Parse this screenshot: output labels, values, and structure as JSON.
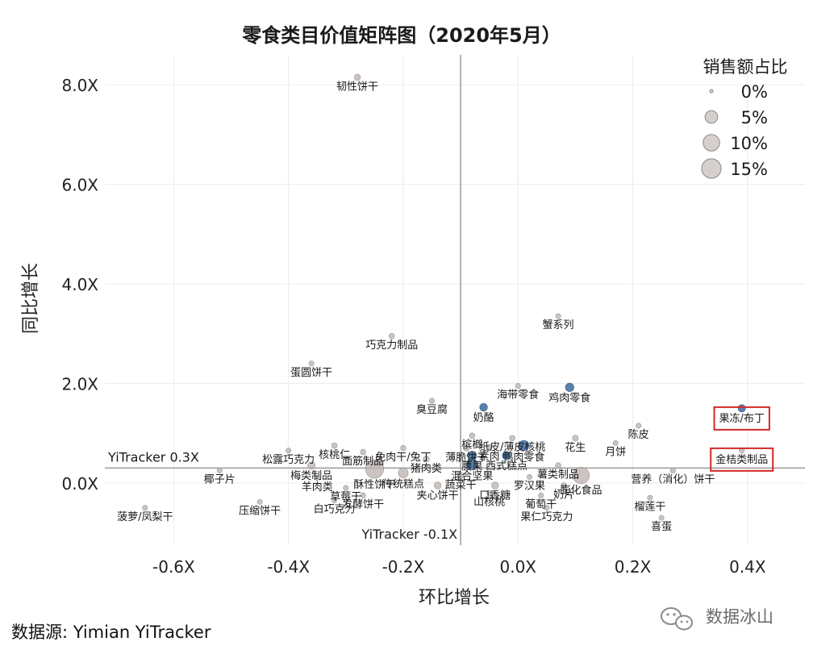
{
  "chart_data": {
    "type": "scatter",
    "title": "零食类目价值矩阵图（2020年5月）",
    "xlabel": "环比增长",
    "ylabel": "同比增长",
    "xlim": [
      -0.72,
      0.5
    ],
    "ylim": [
      -1.25,
      8.6
    ],
    "x_ticks": [
      -0.6,
      -0.4,
      -0.2,
      0.0,
      0.2,
      0.4
    ],
    "x_tick_labels": [
      "-0.6X",
      "-0.4X",
      "-0.2X",
      "0.0X",
      "0.2X",
      "0.4X"
    ],
    "y_ticks": [
      0,
      2,
      4,
      6,
      8
    ],
    "y_tick_labels": [
      "0.0X",
      "2.0X",
      "4.0X",
      "6.0X",
      "8.0X"
    ],
    "grid": true,
    "reference_lines": [
      {
        "axis": "x",
        "value": -0.1,
        "label": "YiTracker -0.1X"
      },
      {
        "axis": "y",
        "value": 0.3,
        "label": "YiTracker 0.3X"
      }
    ],
    "size_legend": {
      "title": "销售额占比",
      "position": "top-right",
      "entries": [
        {
          "label": "0%",
          "value": 0
        },
        {
          "label": "5%",
          "value": 5
        },
        {
          "label": "10%",
          "value": 10
        },
        {
          "label": "15%",
          "value": 15
        }
      ]
    },
    "colors": {
      "highlight": "#4e79a7",
      "default": "#bab0ac",
      "reference": "#9a9a9a",
      "box": "#d62728"
    },
    "highlighted_categories": [
      "果冻/布丁",
      "金桔类制品"
    ],
    "points": [
      {
        "label": "韧性饼干",
        "x": -0.28,
        "y": 8.15,
        "share": 0.5,
        "highlight": false
      },
      {
        "label": "蟹系列",
        "x": 0.07,
        "y": 3.35,
        "share": 0.2,
        "highlight": false
      },
      {
        "label": "巧克力制品",
        "x": -0.22,
        "y": 2.95,
        "share": 0.3,
        "highlight": false
      },
      {
        "label": "蛋圆饼干",
        "x": -0.36,
        "y": 2.4,
        "share": 0.2,
        "highlight": false
      },
      {
        "label": "海带零食",
        "x": 0.0,
        "y": 1.95,
        "share": 0.2,
        "highlight": false
      },
      {
        "label": "鸡肉零食",
        "x": 0.09,
        "y": 1.92,
        "share": 1.6,
        "highlight": true
      },
      {
        "label": "臭豆腐",
        "x": -0.15,
        "y": 1.65,
        "share": 0.2,
        "highlight": false
      },
      {
        "label": "奶酪",
        "x": -0.06,
        "y": 1.52,
        "share": 1.2,
        "highlight": true
      },
      {
        "label": "果冻/布丁",
        "x": 0.39,
        "y": 1.5,
        "share": 1.0,
        "highlight": true
      },
      {
        "label": "陈皮",
        "x": 0.21,
        "y": 1.15,
        "share": 0.2,
        "highlight": false
      },
      {
        "label": "槟榔",
        "x": -0.08,
        "y": 0.95,
        "share": 0.3,
        "highlight": false
      },
      {
        "label": "纸皮/薄皮核桃",
        "x": -0.01,
        "y": 0.9,
        "share": 0.3,
        "highlight": false
      },
      {
        "label": "花生",
        "x": 0.1,
        "y": 0.9,
        "share": 0.4,
        "highlight": false
      },
      {
        "label": "核桃仁",
        "x": -0.32,
        "y": 0.75,
        "share": 0.3,
        "highlight": false
      },
      {
        "label": "免肉干/兔丁",
        "x": -0.2,
        "y": 0.7,
        "share": 0.3,
        "highlight": false
      },
      {
        "label": "素肉",
        "x": -0.05,
        "y": 0.72,
        "share": 0.3,
        "highlight": false
      },
      {
        "label": "鸭肉零食",
        "x": 0.01,
        "y": 0.75,
        "share": 2.8,
        "highlight": true
      },
      {
        "label": "月饼",
        "x": 0.17,
        "y": 0.8,
        "share": 0.2,
        "highlight": false
      },
      {
        "label": "薄脆饼干",
        "x": -0.09,
        "y": 0.7,
        "share": 0.4,
        "highlight": false
      },
      {
        "label": "松露巧克力",
        "x": -0.4,
        "y": 0.65,
        "share": 0.2,
        "highlight": false
      },
      {
        "label": "面筋制品",
        "x": -0.27,
        "y": 0.62,
        "share": 0.3,
        "highlight": false
      },
      {
        "label": "金桔类制品",
        "x": 0.39,
        "y": 0.65,
        "share": 0.2,
        "highlight": false
      },
      {
        "label": "西式糕点",
        "x": -0.02,
        "y": 0.55,
        "share": 1.5,
        "highlight": true
      },
      {
        "label": "腰果",
        "x": -0.08,
        "y": 0.55,
        "share": 1.8,
        "highlight": true
      },
      {
        "label": "猪肉类",
        "x": -0.16,
        "y": 0.48,
        "share": 0.5,
        "highlight": false
      },
      {
        "label": "混合坚果",
        "x": -0.08,
        "y": 0.38,
        "share": 3.5,
        "highlight": true
      },
      {
        "label": "薯类制品",
        "x": 0.07,
        "y": 0.35,
        "share": 0.3,
        "highlight": false
      },
      {
        "label": "梅类制品",
        "x": -0.36,
        "y": 0.35,
        "share": 1.0,
        "highlight": false
      },
      {
        "label": "酥性饼干",
        "x": -0.25,
        "y": 0.28,
        "share": 13.0,
        "highlight": false
      },
      {
        "label": "蔬菜干",
        "x": -0.1,
        "y": 0.15,
        "share": 0.5,
        "highlight": false
      },
      {
        "label": "膨化食品",
        "x": 0.11,
        "y": 0.15,
        "share": 10.0,
        "highlight": false
      },
      {
        "label": "罗汉果",
        "x": 0.02,
        "y": 0.12,
        "share": 0.2,
        "highlight": false
      },
      {
        "label": "营养（消化）饼干",
        "x": 0.27,
        "y": 0.25,
        "share": 0.2,
        "highlight": false
      },
      {
        "label": "椰子片",
        "x": -0.52,
        "y": 0.25,
        "share": 0.2,
        "highlight": false
      },
      {
        "label": "羊肉类",
        "x": -0.35,
        "y": 0.1,
        "share": 0.2,
        "highlight": false
      },
      {
        "label": "传统糕点",
        "x": -0.2,
        "y": 0.2,
        "share": 2.5,
        "highlight": false
      },
      {
        "label": "奶片",
        "x": 0.08,
        "y": -0.05,
        "share": 0.3,
        "highlight": false
      },
      {
        "label": "草莓干",
        "x": -0.3,
        "y": -0.1,
        "share": 0.2,
        "highlight": false
      },
      {
        "label": "口香糖",
        "x": -0.04,
        "y": -0.05,
        "share": 0.8,
        "highlight": false
      },
      {
        "label": "葡萄干",
        "x": 0.04,
        "y": -0.25,
        "share": 0.2,
        "highlight": false
      },
      {
        "label": "榴莲干",
        "x": 0.23,
        "y": -0.3,
        "share": 0.2,
        "highlight": false
      },
      {
        "label": "压缩饼干",
        "x": -0.45,
        "y": -0.38,
        "share": 0.2,
        "highlight": false
      },
      {
        "label": "夹心饼干",
        "x": -0.14,
        "y": -0.05,
        "share": 0.8,
        "highlight": false
      },
      {
        "label": "山核桃",
        "x": -0.05,
        "y": -0.2,
        "share": 0.2,
        "highlight": false
      },
      {
        "label": "发酵饼干",
        "x": -0.27,
        "y": -0.25,
        "share": 0.2,
        "highlight": false
      },
      {
        "label": "白巧克力",
        "x": -0.32,
        "y": -0.35,
        "share": 0.2,
        "highlight": false
      },
      {
        "label": "果仁巧克力",
        "x": 0.05,
        "y": -0.5,
        "share": 0.2,
        "highlight": false
      },
      {
        "label": "菠萝/凤梨干",
        "x": -0.65,
        "y": -0.5,
        "share": 0.2,
        "highlight": false
      },
      {
        "label": "喜蛋",
        "x": 0.25,
        "y": -0.7,
        "share": 0.2,
        "highlight": false
      }
    ]
  },
  "footer": {
    "source": "数据源: Yimian YiTracker",
    "watermark": "数据冰山"
  }
}
